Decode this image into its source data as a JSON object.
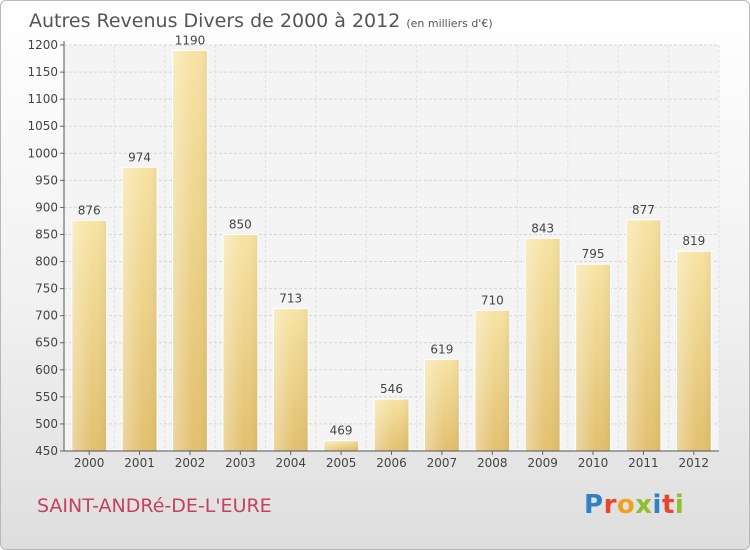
{
  "header": {
    "title": "Autres Revenus Divers de 2000 à 2012",
    "subtitle": "(en milliers d'€)"
  },
  "footer": {
    "place": "SAINT-ANDRé-DE-L'EURE",
    "logo_letters": [
      {
        "char": "P",
        "color": "#2e82c4"
      },
      {
        "char": "r",
        "color": "#e8452f"
      },
      {
        "char": "o",
        "color": "#f0a01e"
      },
      {
        "char": "x",
        "color": "#8dbf2f"
      },
      {
        "char": "i",
        "color": "#2e82c4"
      },
      {
        "char": "t",
        "color": "#e8452f"
      },
      {
        "char": "i",
        "color": "#8dbf2f"
      }
    ]
  },
  "chart_data": {
    "type": "bar",
    "categories": [
      "2000",
      "2001",
      "2002",
      "2003",
      "2004",
      "2005",
      "2006",
      "2007",
      "2008",
      "2009",
      "2010",
      "2011",
      "2012"
    ],
    "values": [
      876,
      974,
      1190,
      850,
      713,
      469,
      546,
      619,
      710,
      843,
      795,
      877,
      819
    ],
    "ylim": [
      450,
      1200
    ],
    "yticks": [
      450,
      500,
      550,
      600,
      650,
      700,
      750,
      800,
      850,
      900,
      950,
      1000,
      1050,
      1100,
      1150,
      1200
    ],
    "grid": true,
    "data_labels": true,
    "bar_color": "#e2c06e",
    "bar_color_light": "#f7e3a3"
  }
}
